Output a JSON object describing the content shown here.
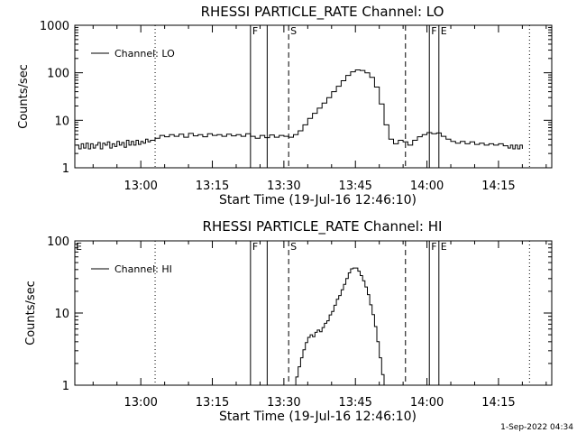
{
  "footer": {
    "timestamp": "1-Sep-2022 04:34"
  },
  "chart_data": [
    {
      "type": "line",
      "title": "RHESSI PARTICLE_RATE Channel: LO",
      "xlabel": "Start Time (19-Jul-16 12:46:10)",
      "ylabel": "Counts/sec",
      "yscale": "log",
      "xlim": [
        "12:46:10",
        "14:26:10"
      ],
      "ylim": [
        1,
        1000
      ],
      "xticks": [
        "13:00",
        "13:15",
        "13:30",
        "13:45",
        "14:00",
        "14:15"
      ],
      "yticks": [
        "1",
        "10",
        "100",
        "1000"
      ],
      "legend": {
        "placement": "top-left",
        "entries": [
          "Channel: LO"
        ]
      },
      "markers": [
        {
          "label": "",
          "time": "13:03:00",
          "style": "dotted"
        },
        {
          "label": "F",
          "time": "13:23:00",
          "style": "solid"
        },
        {
          "label": "",
          "time": "13:26:30",
          "style": "solid"
        },
        {
          "label": "S",
          "time": "13:31:00",
          "style": "dashed"
        },
        {
          "label": "",
          "time": "13:55:30",
          "style": "dashed"
        },
        {
          "label": "F",
          "time": "14:00:30",
          "style": "solid"
        },
        {
          "label": "E",
          "time": "14:02:30",
          "style": "solid"
        },
        {
          "label": "",
          "time": "14:21:30",
          "style": "dotted"
        }
      ],
      "series": [
        {
          "name": "Channel: LO",
          "points": [
            [
              "12:46:30",
              3
            ],
            [
              "12:47:00",
              2.5
            ],
            [
              "12:47:30",
              3.2
            ],
            [
              "12:48:00",
              2.6
            ],
            [
              "12:48:30",
              3.3
            ],
            [
              "12:49:00",
              2.5
            ],
            [
              "12:49:30",
              3.2
            ],
            [
              "12:50:00",
              2.6
            ],
            [
              "12:50:30",
              3.0
            ],
            [
              "12:51:00",
              3.4
            ],
            [
              "12:51:30",
              2.5
            ],
            [
              "12:52:00",
              3.3
            ],
            [
              "12:52:30",
              3.0
            ],
            [
              "12:53:00",
              3.5
            ],
            [
              "12:53:30",
              2.6
            ],
            [
              "12:54:00",
              3.2
            ],
            [
              "12:54:30",
              2.8
            ],
            [
              "12:55:00",
              3.6
            ],
            [
              "12:55:30",
              3.0
            ],
            [
              "12:56:00",
              3.4
            ],
            [
              "12:56:30",
              2.7
            ],
            [
              "12:57:00",
              3.8
            ],
            [
              "12:57:30",
              3.0
            ],
            [
              "12:58:00",
              3.6
            ],
            [
              "12:58:30",
              3.0
            ],
            [
              "12:59:00",
              3.8
            ],
            [
              "12:59:30",
              3.1
            ],
            [
              "13:00:00",
              3.6
            ],
            [
              "13:00:30",
              3.3
            ],
            [
              "13:01:00",
              4.0
            ],
            [
              "13:01:30",
              3.5
            ],
            [
              "13:02:00",
              3.8
            ],
            [
              "13:03:00",
              4.2
            ],
            [
              "13:04:00",
              4.8
            ],
            [
              "13:05:00",
              4.5
            ],
            [
              "13:06:00",
              5.0
            ],
            [
              "13:07:00",
              4.6
            ],
            [
              "13:08:00",
              5.1
            ],
            [
              "13:09:00",
              4.4
            ],
            [
              "13:10:00",
              5.3
            ],
            [
              "13:11:00",
              4.7
            ],
            [
              "13:12:00",
              5.0
            ],
            [
              "13:13:00",
              4.5
            ],
            [
              "13:14:00",
              5.2
            ],
            [
              "13:15:00",
              4.8
            ],
            [
              "13:16:00",
              5.0
            ],
            [
              "13:17:00",
              4.6
            ],
            [
              "13:18:00",
              5.1
            ],
            [
              "13:19:00",
              4.7
            ],
            [
              "13:20:00",
              5.0
            ],
            [
              "13:21:00",
              4.6
            ],
            [
              "13:22:00",
              5.2
            ],
            [
              "13:23:00",
              4.6
            ],
            [
              "13:24:00",
              4.2
            ],
            [
              "13:25:00",
              4.8
            ],
            [
              "13:26:00",
              4.3
            ],
            [
              "13:27:00",
              4.9
            ],
            [
              "13:28:00",
              4.4
            ],
            [
              "13:29:00",
              4.8
            ],
            [
              "13:30:00",
              4.6
            ],
            [
              "13:31:00",
              4.4
            ],
            [
              "13:32:00",
              5.0
            ],
            [
              "13:33:00",
              6.0
            ],
            [
              "13:34:00",
              8.0
            ],
            [
              "13:35:00",
              11
            ],
            [
              "13:36:00",
              14
            ],
            [
              "13:37:00",
              18
            ],
            [
              "13:38:00",
              23
            ],
            [
              "13:39:00",
              30
            ],
            [
              "13:40:00",
              40
            ],
            [
              "13:41:00",
              52
            ],
            [
              "13:42:00",
              68
            ],
            [
              "13:43:00",
              88
            ],
            [
              "13:44:00",
              105
            ],
            [
              "13:45:00",
              115
            ],
            [
              "13:46:00",
              112
            ],
            [
              "13:47:00",
              100
            ],
            [
              "13:48:00",
              80
            ],
            [
              "13:49:00",
              50
            ],
            [
              "13:50:00",
              22
            ],
            [
              "13:51:00",
              8
            ],
            [
              "13:52:00",
              4.0
            ],
            [
              "13:53:00",
              3.2
            ],
            [
              "13:54:00",
              3.8
            ],
            [
              "13:55:00",
              3.5
            ],
            [
              "13:56:00",
              3.0
            ],
            [
              "13:57:00",
              3.8
            ],
            [
              "13:58:00",
              4.5
            ],
            [
              "13:59:00",
              5.0
            ],
            [
              "14:00:00",
              5.5
            ],
            [
              "14:01:00",
              5.2
            ],
            [
              "14:02:00",
              5.4
            ],
            [
              "14:03:00",
              4.6
            ],
            [
              "14:04:00",
              4.0
            ],
            [
              "14:05:00",
              3.6
            ],
            [
              "14:06:00",
              3.3
            ],
            [
              "14:07:00",
              3.6
            ],
            [
              "14:08:00",
              3.2
            ],
            [
              "14:09:00",
              3.5
            ],
            [
              "14:10:00",
              3.1
            ],
            [
              "14:11:00",
              3.3
            ],
            [
              "14:12:00",
              3.0
            ],
            [
              "14:13:00",
              3.2
            ],
            [
              "14:14:00",
              3.0
            ],
            [
              "14:15:00",
              3.2
            ],
            [
              "14:16:00",
              2.9
            ],
            [
              "14:17:00",
              2.6
            ],
            [
              "14:17:30",
              3.0
            ],
            [
              "14:18:00",
              2.5
            ],
            [
              "14:18:30",
              3.0
            ],
            [
              "14:19:00",
              2.5
            ],
            [
              "14:19:30",
              3.0
            ],
            [
              "14:20:00",
              2.5
            ]
          ]
        }
      ]
    },
    {
      "type": "line",
      "title": "RHESSI PARTICLE_RATE Channel: HI",
      "xlabel": "Start Time (19-Jul-16 12:46:10)",
      "ylabel": "Counts/sec",
      "yscale": "log",
      "xlim": [
        "12:46:10",
        "14:26:10"
      ],
      "ylim": [
        1,
        100
      ],
      "xticks": [
        "13:00",
        "13:15",
        "13:30",
        "13:45",
        "14:00",
        "14:15"
      ],
      "yticks": [
        "1",
        "10",
        "100"
      ],
      "legend": {
        "placement": "top-left",
        "entries": [
          "Channel: HI"
        ]
      },
      "corner_labels": [
        "E"
      ],
      "markers": [
        {
          "label": "",
          "time": "13:03:00",
          "style": "dotted"
        },
        {
          "label": "F",
          "time": "13:23:00",
          "style": "solid"
        },
        {
          "label": "",
          "time": "13:26:30",
          "style": "solid"
        },
        {
          "label": "S",
          "time": "13:31:00",
          "style": "dashed"
        },
        {
          "label": "",
          "time": "13:55:30",
          "style": "dashed"
        },
        {
          "label": "F",
          "time": "14:00:30",
          "style": "solid"
        },
        {
          "label": "E",
          "time": "14:02:30",
          "style": "solid"
        },
        {
          "label": "",
          "time": "14:21:30",
          "style": "dotted"
        }
      ],
      "series": [
        {
          "name": "Channel: HI",
          "points": [
            [
              "13:32:00",
              1.0
            ],
            [
              "13:32:30",
              1.3
            ],
            [
              "13:33:00",
              1.8
            ],
            [
              "13:33:30",
              2.4
            ],
            [
              "13:34:00",
              3.1
            ],
            [
              "13:34:30",
              3.9
            ],
            [
              "13:35:00",
              4.6
            ],
            [
              "13:35:30",
              5.0
            ],
            [
              "13:36:00",
              4.7
            ],
            [
              "13:36:30",
              5.4
            ],
            [
              "13:37:00",
              5.8
            ],
            [
              "13:37:30",
              5.5
            ],
            [
              "13:38:00",
              6.3
            ],
            [
              "13:38:30",
              7.2
            ],
            [
              "13:39:00",
              7.8
            ],
            [
              "13:39:30",
              9.4
            ],
            [
              "13:40:00",
              10.5
            ],
            [
              "13:40:30",
              12.8
            ],
            [
              "13:41:00",
              15.5
            ],
            [
              "13:41:30",
              17.5
            ],
            [
              "13:42:00",
              21
            ],
            [
              "13:42:30",
              25
            ],
            [
              "13:43:00",
              30
            ],
            [
              "13:43:30",
              36
            ],
            [
              "13:44:00",
              41
            ],
            [
              "13:44:30",
              42
            ],
            [
              "13:45:00",
              42
            ],
            [
              "13:45:30",
              38
            ],
            [
              "13:46:00",
              33
            ],
            [
              "13:46:30",
              28
            ],
            [
              "13:47:00",
              23
            ],
            [
              "13:47:30",
              18
            ],
            [
              "13:48:00",
              13
            ],
            [
              "13:48:30",
              9.5
            ],
            [
              "13:49:00",
              6.5
            ],
            [
              "13:49:30",
              4.0
            ],
            [
              "13:50:00",
              2.4
            ],
            [
              "13:50:30",
              1.4
            ],
            [
              "13:51:00",
              1.0
            ]
          ]
        }
      ]
    }
  ]
}
